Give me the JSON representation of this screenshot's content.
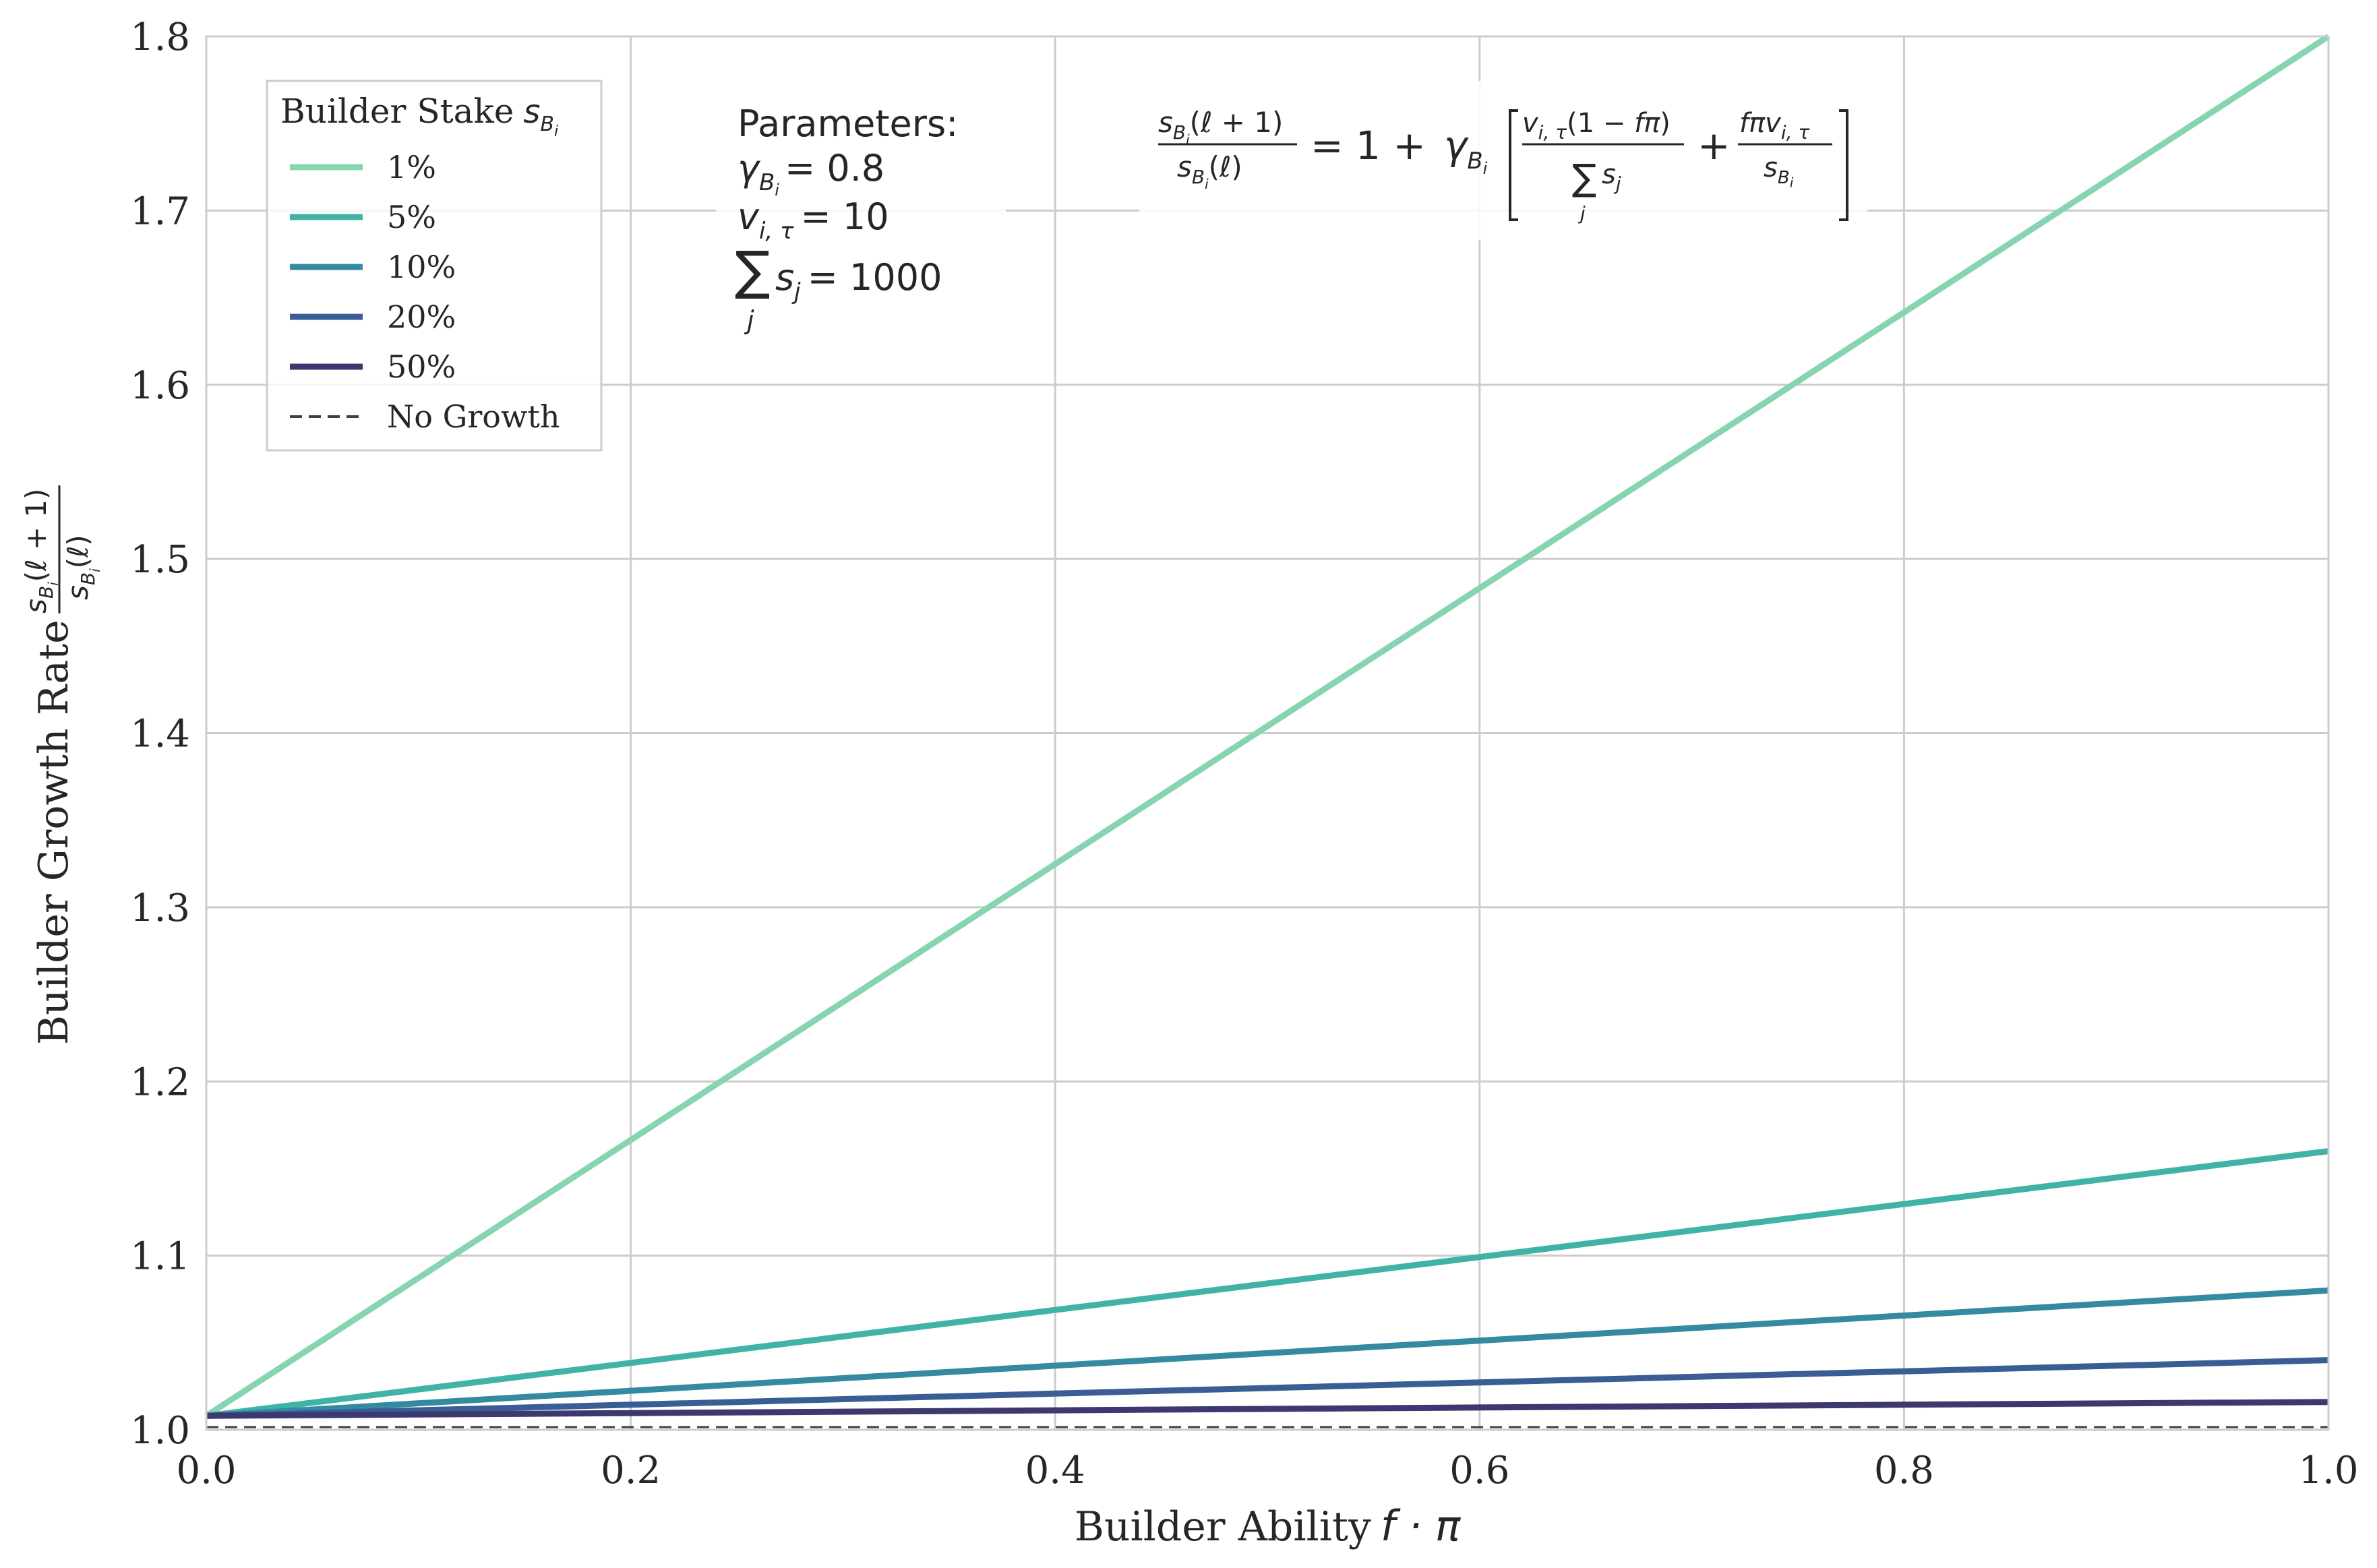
{
  "chart_data": {
    "type": "line",
    "x": [
      0.0,
      0.2,
      0.4,
      0.6,
      0.8,
      1.0
    ],
    "xlim": [
      0.0,
      1.0
    ],
    "ylim": [
      1.0,
      1.8
    ],
    "xticks": [
      "0.0",
      "0.2",
      "0.4",
      "0.6",
      "0.8",
      "1.0"
    ],
    "yticks": [
      "1.0",
      "1.1",
      "1.2",
      "1.3",
      "1.4",
      "1.5",
      "1.6",
      "1.7",
      "1.8"
    ],
    "xlabel_text": "Builder Ability",
    "xlabel_math": "f · π",
    "ylabel_text": "Builder Growth Rate",
    "grid": true,
    "legend_placement": "upper-left",
    "legend_title_text": "Builder Stake",
    "series": [
      {
        "name": "1%",
        "color": "#86d5b0",
        "values": [
          1.008,
          1.1664,
          1.3248,
          1.4832,
          1.6416,
          1.8
        ]
      },
      {
        "name": "5%",
        "color": "#40b3a6",
        "values": [
          1.008,
          1.0384,
          1.0688,
          1.0992,
          1.1296,
          1.16
        ]
      },
      {
        "name": "10%",
        "color": "#348aa0",
        "values": [
          1.008,
          1.0224,
          1.0368,
          1.0512,
          1.0656,
          1.08
        ]
      },
      {
        "name": "20%",
        "color": "#3a5d96",
        "values": [
          1.008,
          1.0144,
          1.0208,
          1.0272,
          1.0336,
          1.04
        ]
      },
      {
        "name": "50%",
        "color": "#3c3970",
        "values": [
          1.008,
          1.0096,
          1.0112,
          1.0128,
          1.0144,
          1.016
        ]
      }
    ],
    "reference_line": {
      "name": "No Growth",
      "y": 1.0,
      "color": "#404040",
      "style": "dashed"
    },
    "annotations": {
      "parameters_title": "Parameters:",
      "gamma_value": "= 0.8",
      "v_value": "= 10",
      "sum_value": "= 1000"
    }
  }
}
